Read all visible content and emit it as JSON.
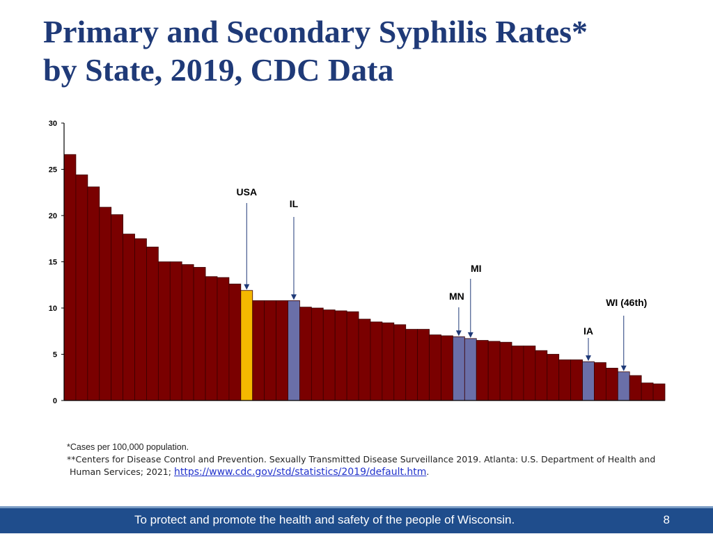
{
  "title": {
    "line1": "Primary and Secondary Syphilis Rates*",
    "line2": "by State, 2019, CDC Data"
  },
  "chart_data": {
    "type": "bar",
    "title": "Primary and Secondary Syphilis Rates* by State, 2019, CDC Data",
    "xlabel": "",
    "ylabel": "",
    "ylim": [
      0,
      30
    ],
    "yticks": [
      0,
      5,
      10,
      15,
      20,
      25,
      30
    ],
    "colors": {
      "default": "#7a0000",
      "usa": "#f5b800",
      "highlight": "#6a6fa8"
    },
    "values": [
      26.6,
      24.4,
      23.1,
      20.9,
      20.1,
      18.0,
      17.5,
      16.6,
      15.0,
      15.0,
      14.7,
      14.4,
      13.4,
      13.3,
      12.6,
      11.9,
      10.8,
      10.8,
      10.8,
      10.8,
      10.1,
      10.0,
      9.8,
      9.7,
      9.6,
      8.8,
      8.5,
      8.4,
      8.2,
      7.7,
      7.7,
      7.1,
      7.0,
      6.9,
      6.7,
      6.5,
      6.4,
      6.3,
      5.9,
      5.9,
      5.4,
      5.0,
      4.4,
      4.4,
      4.2,
      4.1,
      3.5,
      3.1,
      2.7,
      1.9,
      1.8
    ],
    "highlights": [
      {
        "index": 15,
        "kind": "usa",
        "label": "USA"
      },
      {
        "index": 19,
        "kind": "highlight",
        "label": "IL"
      },
      {
        "index": 33,
        "kind": "highlight",
        "label": "MN"
      },
      {
        "index": 34,
        "kind": "highlight",
        "label": "MI"
      },
      {
        "index": 44,
        "kind": "highlight",
        "label": "IA"
      },
      {
        "index": 47,
        "kind": "highlight",
        "label": "WI (46th)"
      }
    ]
  },
  "notes": {
    "line1": "*Cases per 100,000 population.",
    "line2": "**Centers for Disease Control and Prevention. Sexually Transmitted Disease Surveillance 2019. Atlanta: U.S. Department of Health and Human Services; 2021;",
    "link": "https://www.cdc.gov/std/statistics/2019/default.htm",
    "end": "."
  },
  "footer": {
    "motto": "To protect and promote the health and safety of the people of Wisconsin.",
    "page": "8"
  }
}
